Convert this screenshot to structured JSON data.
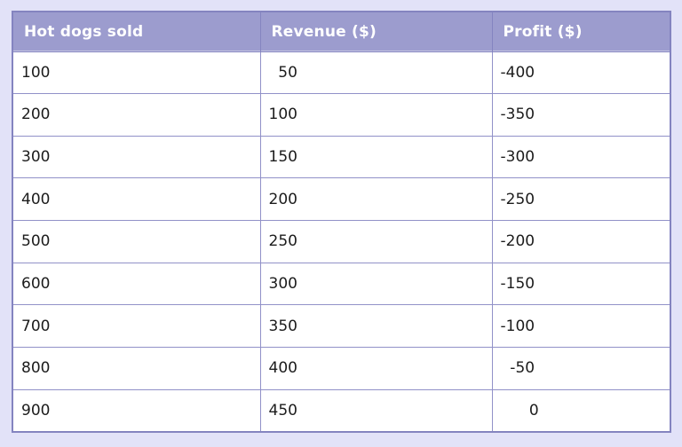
{
  "theme": {
    "page_bg": "#E2E2F8",
    "header_bg": "#9C9CCE",
    "header_text": "#FFFFFF",
    "cell_bg": "#FFFFFF",
    "cell_text": "#1C1C1C",
    "outer_border": "#8484C0",
    "inner_border": "#9191C8"
  },
  "table": {
    "columns": [
      {
        "key": "hotdogs-sold",
        "label": "Hot dogs sold"
      },
      {
        "key": "revenue",
        "label": "Revenue ($)"
      },
      {
        "key": "profit",
        "label": "Profit ($)"
      }
    ],
    "rows": [
      [
        "100",
        "  50",
        "-400"
      ],
      [
        "200",
        "100",
        "-350"
      ],
      [
        "300",
        "150",
        "-300"
      ],
      [
        "400",
        "200",
        "-250"
      ],
      [
        "500",
        "250",
        "-200"
      ],
      [
        "600",
        "300",
        "-150"
      ],
      [
        "700",
        "350",
        "-100"
      ],
      [
        "800",
        "400",
        "  -50"
      ],
      [
        "900",
        "450",
        "      0"
      ]
    ]
  },
  "chart_data": {
    "type": "table",
    "title": "",
    "columns": [
      "Hot dogs sold",
      "Revenue ($)",
      "Profit ($)"
    ],
    "rows": [
      [
        100,
        50,
        -400
      ],
      [
        200,
        100,
        -350
      ],
      [
        300,
        150,
        -300
      ],
      [
        400,
        200,
        -250
      ],
      [
        500,
        250,
        -200
      ],
      [
        600,
        300,
        -150
      ],
      [
        700,
        350,
        -100
      ],
      [
        800,
        400,
        -50
      ],
      [
        900,
        450,
        0
      ]
    ]
  }
}
